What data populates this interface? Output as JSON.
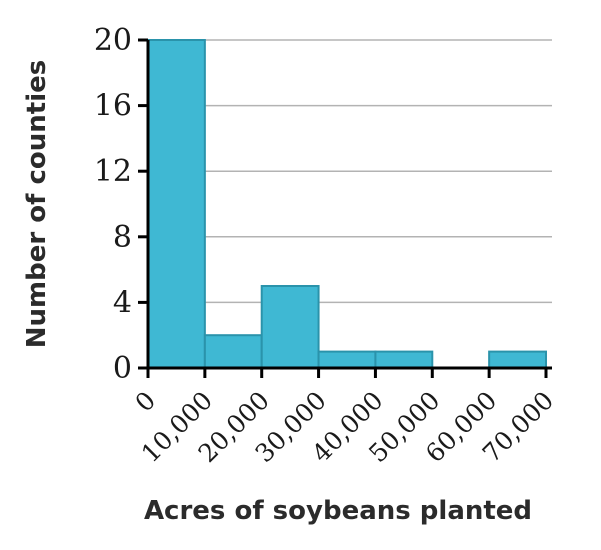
{
  "chart_data": {
    "type": "bar",
    "xlabel": "Acres of soybeans planted",
    "ylabel": "Number of counties",
    "bins": [
      {
        "from": 0,
        "to": 10000,
        "value": 20
      },
      {
        "from": 10000,
        "to": 20000,
        "value": 2
      },
      {
        "from": 20000,
        "to": 30000,
        "value": 5
      },
      {
        "from": 30000,
        "to": 40000,
        "value": 1
      },
      {
        "from": 40000,
        "to": 50000,
        "value": 1
      },
      {
        "from": 50000,
        "to": 60000,
        "value": 0
      },
      {
        "from": 60000,
        "to": 70000,
        "value": 1
      }
    ],
    "x_ticks": [
      "0",
      "10,000",
      "20,000",
      "30,000",
      "40,000",
      "50,000",
      "60,000",
      "70,000"
    ],
    "y_ticks": [
      "0",
      "4",
      "8",
      "12",
      "16",
      "20"
    ],
    "xlim": [
      0,
      70000
    ],
    "ylim": [
      0,
      20
    ],
    "grid": "horizontal",
    "colors": {
      "bar_fill": "#3fb8d3",
      "bar_stroke": "#2a93ab",
      "grid": "#b3b3b3",
      "axis": "#000000"
    }
  }
}
